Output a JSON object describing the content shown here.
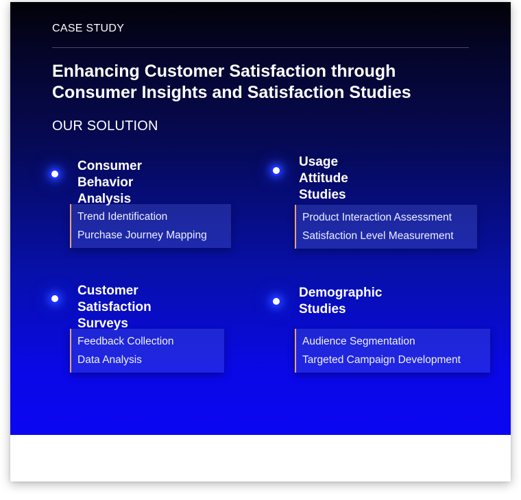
{
  "eyebrow": "CASE STUDY",
  "title": "Enhancing Customer Satisfaction through Consumer Insights and Satisfaction Studies",
  "section_heading": "OUR SOLUTION",
  "solutions": [
    {
      "title": "Consumer Behavior\nAnalysis",
      "points": [
        "Trend Identification",
        "Purchase Journey Mapping"
      ]
    },
    {
      "title": "Usage Attitude\nStudies",
      "points": [
        "Product Interaction Assessment",
        "Satisfaction Level Measurement"
      ]
    },
    {
      "title": "Customer Satisfaction\nSurveys",
      "points": [
        "Feedback Collection",
        "Data Analysis"
      ]
    },
    {
      "title": "Demographic\nStudies",
      "points": [
        "Audience Segmentation",
        "Targeted Campaign Development"
      ]
    }
  ],
  "colors": {
    "gradient_top": "#020208",
    "gradient_bottom": "#0b06f2",
    "accent_border": "#e8a27a",
    "dot_glow": "#1a2cff"
  }
}
